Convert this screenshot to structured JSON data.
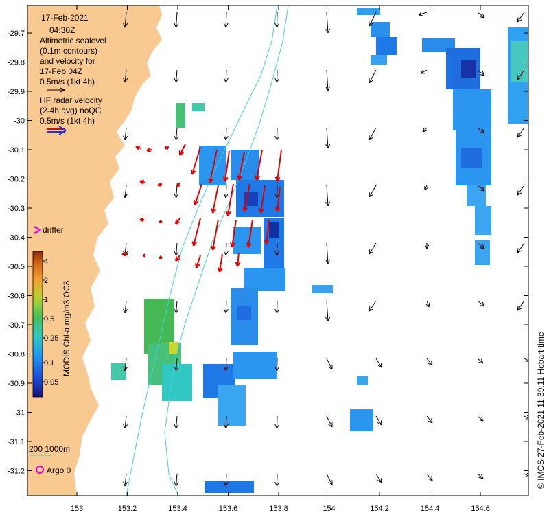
{
  "title": {
    "date": "17-Feb-2021",
    "time": "04:30Z"
  },
  "legend": {
    "altimetry_lines": [
      "Altimetric sealevel",
      "(0.1m contours)",
      "and velocity for",
      "17-Feb 04Z",
      "0.5m/s (1kt 4h)"
    ],
    "hf_lines": [
      "HF radar velocity",
      "(2-4h avg) noQC",
      "0.5m/s (1kt 4h)"
    ],
    "drifter_label": "drifter",
    "argo_label": "Argo 0",
    "isobath_label": "200  1000m"
  },
  "colorbar": {
    "label": "MODIS Chl-a mg/m3 OC3",
    "ticks": [
      "4",
      "2",
      "1",
      "0.5",
      "0.25",
      "0.1",
      "0.05"
    ]
  },
  "axes": {
    "x_ticks": [
      "153",
      "153.2",
      "153.4",
      "153.6",
      "153.8",
      "154",
      "154.2",
      "154.4",
      "154.6"
    ],
    "y_ticks": [
      "-29.7",
      "-29.8",
      "-29.9",
      "-30",
      "-30.1",
      "-30.2",
      "-30.3",
      "-30.4",
      "-30.5",
      "-30.6",
      "-30.7",
      "-30.8",
      "-30.9",
      "-31",
      "-31.1",
      "-31.2"
    ]
  },
  "credit": "© IMOS 27-Feb-2021 11:39:11 Hobart time",
  "colors": {
    "land": "#f9c992",
    "altimetry_arrow": "#000000",
    "hf_arrow": "#e00000",
    "isobath": "#40d0d8",
    "drifter": "#e000e0",
    "argo": "#e000e0"
  }
}
